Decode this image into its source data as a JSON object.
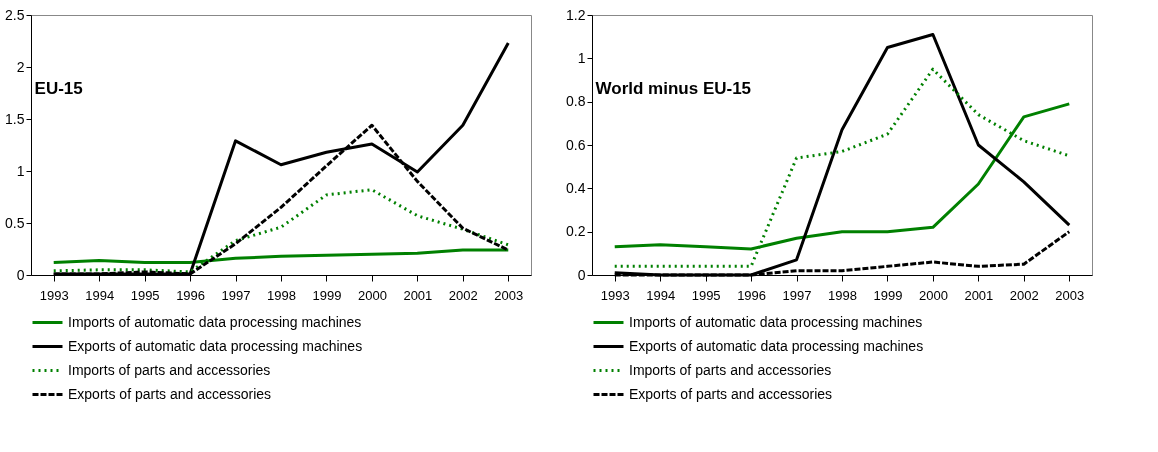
{
  "chart_data": [
    {
      "type": "line",
      "title": "EU-15",
      "categories": [
        "1993",
        "1994",
        "1995",
        "1996",
        "1997",
        "1998",
        "1999",
        "2000",
        "2001",
        "2002",
        "2003"
      ],
      "ylim": [
        0,
        2.5
      ],
      "yticks": [
        0,
        0.5,
        1,
        1.5,
        2,
        2.5
      ],
      "grid": false,
      "legend": "bottom",
      "series": [
        {
          "name": "Imports of automatic data processing machines",
          "color": "#008000",
          "line_style": "solid",
          "values": [
            0.12,
            0.14,
            0.12,
            0.12,
            0.16,
            0.18,
            0.19,
            0.2,
            0.21,
            0.24,
            0.24
          ]
        },
        {
          "name": "Exports of automatic data processing machines",
          "color": "#000000",
          "line_style": "solid",
          "values": [
            0.01,
            0.01,
            0.01,
            0.01,
            1.29,
            1.06,
            1.18,
            1.26,
            0.99,
            1.44,
            2.23
          ]
        },
        {
          "name": "Imports of parts and accessories",
          "color": "#008000",
          "line_style": "dotted",
          "values": [
            0.04,
            0.05,
            0.05,
            0.03,
            0.33,
            0.46,
            0.77,
            0.82,
            0.57,
            0.44,
            0.29
          ]
        },
        {
          "name": "Exports of parts and accessories",
          "color": "#000000",
          "line_style": "dashed",
          "values": [
            0.01,
            0.01,
            0.03,
            0.01,
            0.3,
            0.65,
            1.05,
            1.44,
            0.9,
            0.45,
            0.24
          ]
        }
      ]
    },
    {
      "type": "line",
      "title": "World minus EU-15",
      "categories": [
        "1993",
        "1994",
        "1995",
        "1996",
        "1997",
        "1998",
        "1999",
        "2000",
        "2001",
        "2002",
        "2003"
      ],
      "ylim": [
        0,
        1.2
      ],
      "yticks": [
        0,
        0.2,
        0.4,
        0.6,
        0.8,
        1,
        1.2
      ],
      "grid": false,
      "legend": "bottom",
      "series": [
        {
          "name": "Imports of automatic data processing machines",
          "color": "#008000",
          "line_style": "solid",
          "values": [
            0.13,
            0.14,
            0.13,
            0.12,
            0.17,
            0.2,
            0.2,
            0.22,
            0.42,
            0.73,
            0.79
          ]
        },
        {
          "name": "Exports of automatic data processing machines",
          "color": "#000000",
          "line_style": "solid",
          "values": [
            0.01,
            0.0,
            0.0,
            0.0,
            0.07,
            0.67,
            1.05,
            1.11,
            0.6,
            0.43,
            0.23
          ]
        },
        {
          "name": "Imports of parts and accessories",
          "color": "#008000",
          "line_style": "dotted",
          "values": [
            0.04,
            0.04,
            0.04,
            0.04,
            0.54,
            0.57,
            0.65,
            0.95,
            0.74,
            0.62,
            0.55
          ]
        },
        {
          "name": "Exports of parts and accessories",
          "color": "#000000",
          "line_style": "dashed",
          "values": [
            0.0,
            0.0,
            0.0,
            0.0,
            0.02,
            0.02,
            0.04,
            0.06,
            0.04,
            0.05,
            0.2
          ]
        }
      ]
    }
  ]
}
